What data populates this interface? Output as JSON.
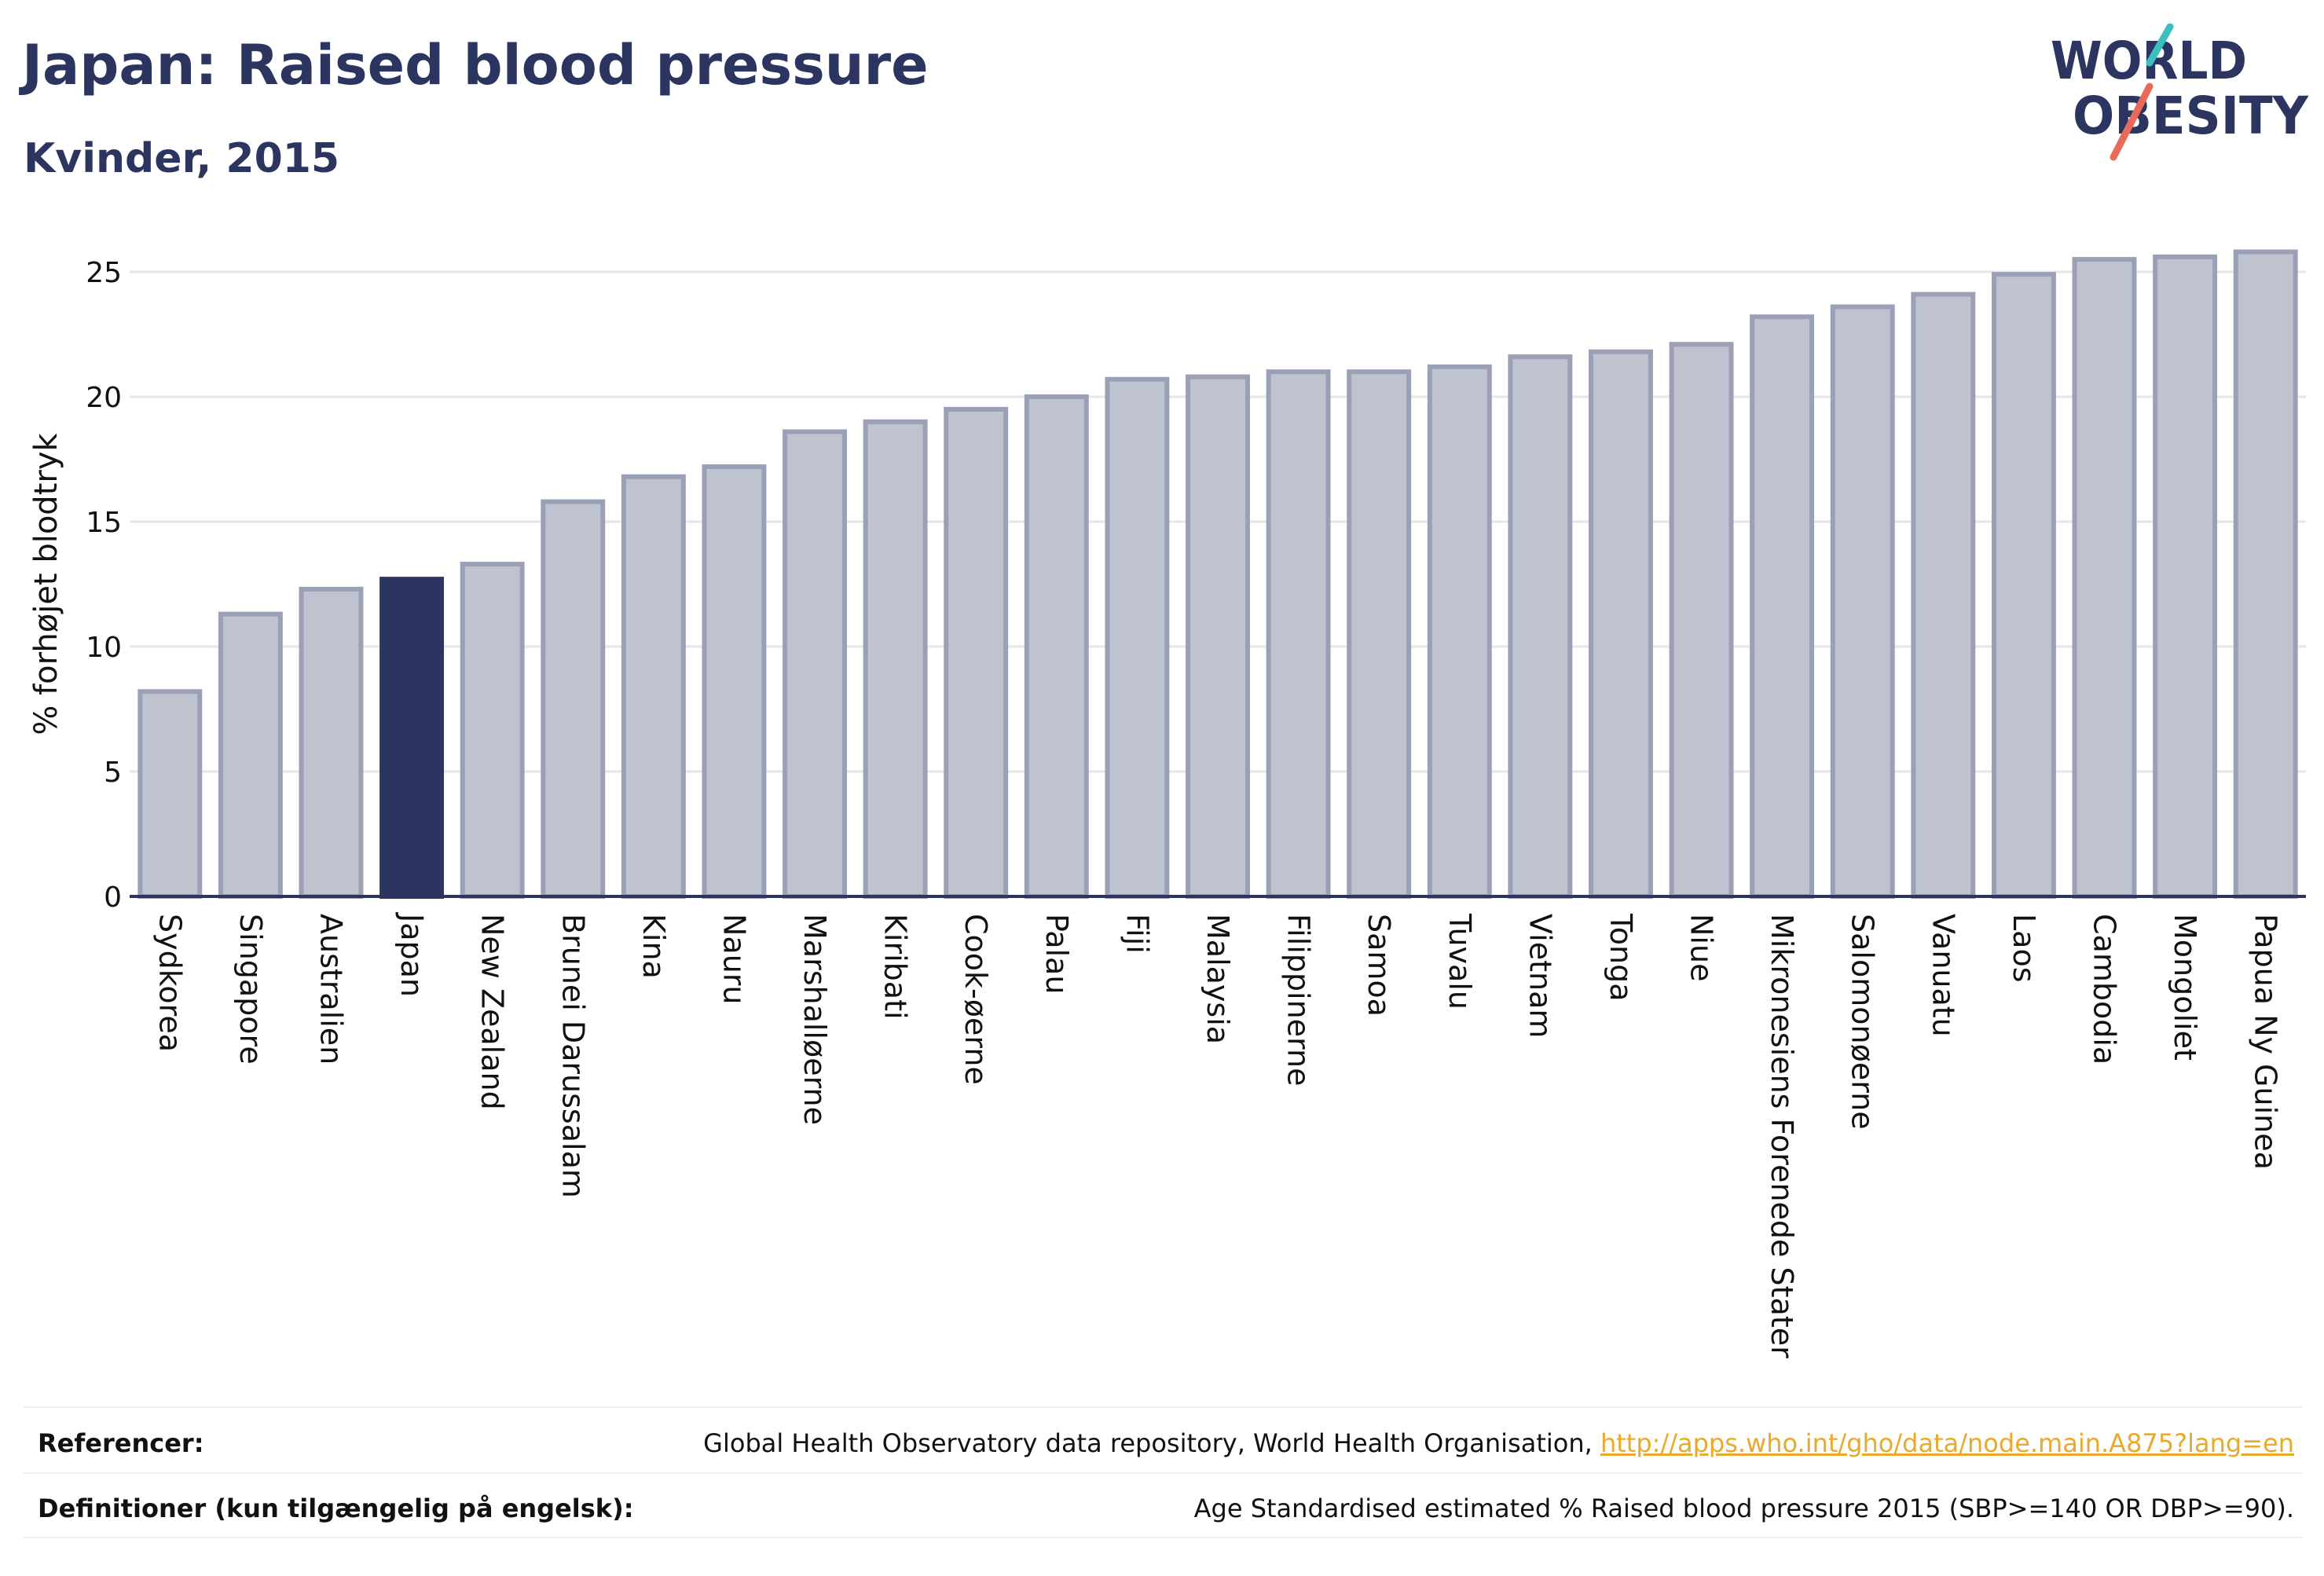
{
  "header": {
    "title": "Japan: Raised blood pressure",
    "subtitle": "Kvinder, 2015"
  },
  "logo": {
    "line1": "WORLD",
    "line2": "OBESITY",
    "colors": {
      "text": "#2b3560",
      "slash_top": "#3bbfbf",
      "slash_bottom": "#e86a5a"
    }
  },
  "colors": {
    "bar": "#bfc3d0",
    "bar_border": "#9aa0b5",
    "highlight": "#2b3560",
    "grid": "#e6e6e6",
    "axis": "#2b3560",
    "link": "#e8a92c"
  },
  "chart_data": {
    "type": "bar",
    "title": "Japan: Raised blood pressure",
    "subtitle": "Kvinder, 2015",
    "xlabel": "",
    "ylabel": "% forhøjet blodtryk",
    "ylim": [
      0,
      26.5
    ],
    "yticks": [
      0,
      5,
      10,
      15,
      20,
      25
    ],
    "grid": true,
    "highlight": "Japan",
    "categories": [
      "Sydkorea",
      "Singapore",
      "Australien",
      "Japan",
      "New Zealand",
      "Brunei Darussalam",
      "Kina",
      "Nauru",
      "Marshalløerne",
      "Kiribati",
      "Cook-øerne",
      "Palau",
      "Fiji",
      "Malaysia",
      "Filippinerne",
      "Samoa",
      "Tuvalu",
      "Vietnam",
      "Tonga",
      "Niue",
      "Mikronesiens Forenede Stater",
      "Salomonøerne",
      "Vanuatu",
      "Laos",
      "Cambodia",
      "Mongoliet",
      "Papua Ny Guinea"
    ],
    "values": [
      8.2,
      11.3,
      12.3,
      12.7,
      13.3,
      15.8,
      16.8,
      17.2,
      18.6,
      19.0,
      19.5,
      20.0,
      20.7,
      20.8,
      21.0,
      21.0,
      21.2,
      21.6,
      21.8,
      22.1,
      23.2,
      23.6,
      24.1,
      24.9,
      25.5,
      25.6,
      25.8
    ]
  },
  "footer": {
    "references_label": "Referencer:",
    "references_text": "Global Health Observatory data repository, World Health Organisation, ",
    "references_link": "http://apps.who.int/gho/data/node.main.A875?lang=en",
    "definitions_label": "Definitioner (kun tilgængelig på engelsk):",
    "definitions_text": "Age Standardised estimated % Raised blood pressure 2015 (SBP>=140 OR DBP>=90)."
  }
}
